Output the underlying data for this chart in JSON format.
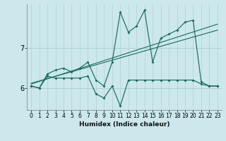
{
  "xlabel": "Humidex (Indice chaleur)",
  "bg_color": "#cce8ec",
  "line_color": "#1a6b5e",
  "grid_color": "#b0cfd4",
  "x_ticks": [
    0,
    1,
    2,
    3,
    4,
    5,
    6,
    7,
    8,
    9,
    10,
    11,
    12,
    13,
    14,
    15,
    16,
    17,
    18,
    19,
    20,
    21,
    22,
    23
  ],
  "y_ticks": [
    6,
    7
  ],
  "ylim": [
    5.45,
    8.1
  ],
  "xlim": [
    -0.5,
    23.5
  ],
  "series1_y": [
    6.05,
    6.0,
    6.3,
    6.25,
    6.25,
    6.25,
    6.25,
    6.3,
    5.85,
    5.75,
    6.05,
    5.55,
    6.2,
    6.2,
    6.2,
    6.2,
    6.2,
    6.2,
    6.2,
    6.2,
    6.2,
    6.1,
    6.05,
    6.05
  ],
  "series2_y": [
    6.05,
    6.0,
    6.35,
    6.45,
    6.5,
    6.4,
    6.5,
    6.65,
    6.2,
    6.05,
    6.65,
    7.9,
    7.4,
    7.55,
    7.95,
    6.65,
    7.25,
    7.35,
    7.45,
    7.65,
    7.7,
    6.15,
    6.05,
    6.05
  ],
  "trend1_x": [
    0,
    23
  ],
  "trend1_y": [
    6.1,
    7.6
  ],
  "trend2_x": [
    0,
    23
  ],
  "trend2_y": [
    6.12,
    7.45
  ],
  "xlabel_fontsize": 6.5,
  "tick_fontsize": 5.5,
  "ytick_fontsize": 7.0
}
